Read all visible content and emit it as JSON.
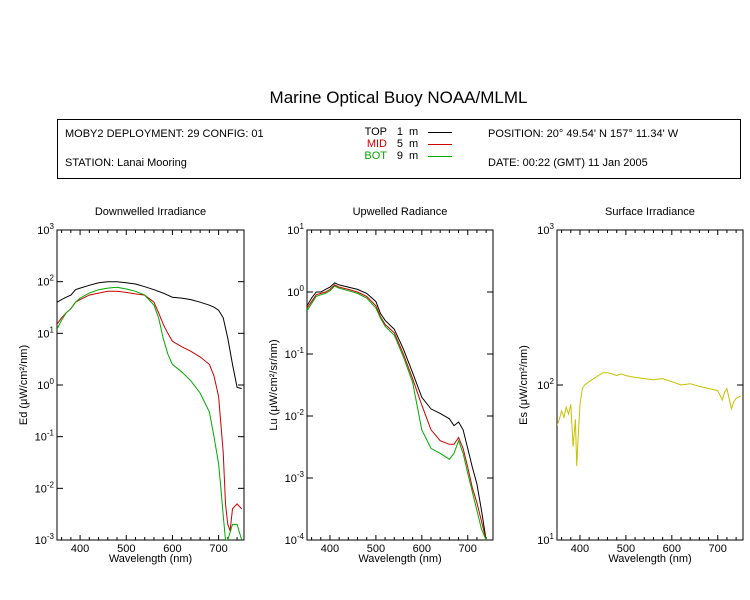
{
  "title": "Marine Optical Buoy NOAA/MLML",
  "header": {
    "deployment": "MOBY2 DEPLOYMENT: 29 CONFIG: 01",
    "station": "STATION: Lanai Mooring",
    "position": "POSITION: 20° 49.54' N   157° 11.34' W",
    "date": "DATE: 00:22 (GMT) 11 Jan 2005",
    "legend": [
      {
        "name": "TOP",
        "depth": "1",
        "unit": "m",
        "color": "#000000"
      },
      {
        "name": "MID",
        "depth": "5",
        "unit": "m",
        "color": "#cc0000"
      },
      {
        "name": "BOT",
        "depth": "9",
        "unit": "m",
        "color": "#00aa00"
      }
    ]
  },
  "chart_data": [
    {
      "type": "line",
      "title": "Downwelled Irradiance",
      "xlabel": "Wavelength (nm)",
      "ylabel": "Ed  (μW/cm²/nm)",
      "xlim": [
        350,
        755
      ],
      "ylim": [
        0.001,
        1000
      ],
      "yscale": "log",
      "xticks": [
        400,
        500,
        600,
        700
      ],
      "yticks": [
        {
          "v": 0.001,
          "base": "10",
          "exp": "-3"
        },
        {
          "v": 0.01,
          "base": "10",
          "exp": "-2"
        },
        {
          "v": 0.1,
          "base": "10",
          "exp": "-1"
        },
        {
          "v": 1,
          "base": "10",
          "exp": "0"
        },
        {
          "v": 10,
          "base": "10",
          "exp": "1"
        },
        {
          "v": 100,
          "base": "10",
          "exp": "2"
        },
        {
          "v": 1000,
          "base": "10",
          "exp": "3"
        }
      ],
      "series": [
        {
          "name": "TOP",
          "color": "#000000",
          "x": [
            350,
            360,
            370,
            380,
            390,
            400,
            420,
            440,
            460,
            480,
            500,
            520,
            540,
            560,
            580,
            600,
            620,
            640,
            660,
            680,
            690,
            700,
            710,
            720,
            730,
            735,
            740,
            750
          ],
          "y": [
            40,
            45,
            50,
            55,
            70,
            75,
            85,
            95,
            100,
            100,
            95,
            90,
            80,
            70,
            60,
            50,
            48,
            45,
            40,
            35,
            32,
            28,
            20,
            8,
            2.5,
            1.5,
            0.9,
            0.85
          ]
        },
        {
          "name": "MID",
          "color": "#cc0000",
          "x": [
            350,
            360,
            370,
            380,
            390,
            400,
            420,
            440,
            460,
            480,
            500,
            520,
            540,
            560,
            570,
            580,
            590,
            600,
            620,
            640,
            660,
            680,
            690,
            700,
            710,
            715,
            720,
            725,
            730,
            740,
            750
          ],
          "y": [
            15,
            20,
            25,
            30,
            40,
            45,
            55,
            60,
            65,
            65,
            62,
            58,
            55,
            40,
            25,
            15,
            10,
            7,
            5.5,
            4.5,
            3.5,
            2.5,
            1.5,
            0.6,
            0.05,
            0.005,
            0.002,
            0.0015,
            0.004,
            0.005,
            0.004
          ]
        },
        {
          "name": "BOT",
          "color": "#00aa00",
          "x": [
            350,
            360,
            370,
            380,
            390,
            400,
            420,
            440,
            460,
            480,
            500,
            520,
            540,
            560,
            570,
            580,
            590,
            600,
            620,
            640,
            660,
            680,
            690,
            700,
            705,
            710,
            715,
            720,
            730,
            740,
            750
          ],
          "y": [
            12,
            18,
            25,
            30,
            40,
            48,
            60,
            70,
            75,
            78,
            72,
            65,
            55,
            35,
            20,
            8,
            4,
            2.5,
            1.8,
            1.2,
            0.7,
            0.3,
            0.1,
            0.03,
            0.01,
            0.003,
            0.001,
            0.001,
            0.002,
            0.002,
            0.001
          ]
        }
      ]
    },
    {
      "type": "line",
      "title": "Upwelled Radiance",
      "xlabel": "Wavelength (nm)",
      "ylabel": "Lu  (μW/cm²/sr/nm)",
      "xlim": [
        350,
        755
      ],
      "ylim": [
        0.0001,
        10
      ],
      "yscale": "log",
      "xticks": [
        400,
        500,
        600,
        700
      ],
      "yticks": [
        {
          "v": 0.0001,
          "base": "10",
          "exp": "-4"
        },
        {
          "v": 0.001,
          "base": "10",
          "exp": "-3"
        },
        {
          "v": 0.01,
          "base": "10",
          "exp": "-2"
        },
        {
          "v": 0.1,
          "base": "10",
          "exp": "-1"
        },
        {
          "v": 1,
          "base": "10",
          "exp": "0"
        },
        {
          "v": 10,
          "base": "10",
          "exp": "1"
        }
      ],
      "series": [
        {
          "name": "TOP",
          "color": "#000000",
          "x": [
            350,
            360,
            370,
            380,
            390,
            400,
            410,
            420,
            440,
            460,
            480,
            500,
            510,
            520,
            540,
            560,
            580,
            600,
            620,
            640,
            660,
            670,
            680,
            690,
            700,
            710,
            720,
            730,
            740
          ],
          "y": [
            0.6,
            0.8,
            1.0,
            1.0,
            1.1,
            1.2,
            1.4,
            1.3,
            1.2,
            1.1,
            0.95,
            0.7,
            0.45,
            0.35,
            0.25,
            0.12,
            0.05,
            0.02,
            0.013,
            0.011,
            0.009,
            0.007,
            0.008,
            0.006,
            0.003,
            0.0015,
            0.0008,
            0.0003,
            0.0001
          ]
        },
        {
          "name": "MID",
          "color": "#cc0000",
          "x": [
            350,
            360,
            370,
            380,
            390,
            400,
            410,
            420,
            440,
            460,
            480,
            500,
            510,
            520,
            540,
            560,
            580,
            600,
            620,
            640,
            660,
            670,
            680,
            690,
            700,
            710,
            720,
            730,
            740
          ],
          "y": [
            0.55,
            0.7,
            0.9,
            0.95,
            1.0,
            1.1,
            1.3,
            1.2,
            1.1,
            1.0,
            0.85,
            0.6,
            0.4,
            0.3,
            0.22,
            0.1,
            0.04,
            0.015,
            0.006,
            0.004,
            0.0035,
            0.0035,
            0.0045,
            0.003,
            0.0015,
            0.0007,
            0.0004,
            0.0002,
            0.0001
          ]
        },
        {
          "name": "BOT",
          "color": "#00aa00",
          "x": [
            350,
            360,
            370,
            380,
            390,
            400,
            410,
            420,
            440,
            460,
            480,
            500,
            510,
            520,
            540,
            560,
            580,
            600,
            620,
            640,
            660,
            670,
            680,
            690,
            700,
            710,
            720,
            730,
            740
          ],
          "y": [
            0.5,
            0.65,
            0.85,
            0.9,
            0.95,
            1.05,
            1.25,
            1.15,
            1.05,
            0.95,
            0.8,
            0.55,
            0.38,
            0.28,
            0.2,
            0.09,
            0.035,
            0.006,
            0.003,
            0.0025,
            0.002,
            0.0025,
            0.004,
            0.0025,
            0.0012,
            0.0006,
            0.0003,
            0.00015,
            0.0001
          ]
        }
      ]
    },
    {
      "type": "line",
      "title": "Surface Irradiance",
      "xlabel": "Wavelength (nm)",
      "ylabel": "Es  (μW/cm²/nm)",
      "xlim": [
        350,
        755
      ],
      "ylim": [
        10,
        1000
      ],
      "yscale": "log",
      "xticks": [
        400,
        500,
        600,
        700
      ],
      "yticks": [
        {
          "v": 10,
          "base": "10",
          "exp": "1"
        },
        {
          "v": 100,
          "base": "10",
          "exp": "2"
        },
        {
          "v": 1000,
          "base": "10",
          "exp": "3"
        }
      ],
      "series": [
        {
          "name": "Es",
          "color": "#c8c000",
          "x": [
            350,
            355,
            360,
            365,
            370,
            375,
            380,
            385,
            390,
            393,
            396,
            400,
            405,
            410,
            420,
            430,
            440,
            450,
            460,
            470,
            480,
            490,
            500,
            520,
            540,
            560,
            580,
            600,
            620,
            640,
            660,
            680,
            700,
            710,
            715,
            720,
            730,
            735,
            740,
            750
          ],
          "y": [
            55,
            60,
            68,
            62,
            72,
            65,
            75,
            40,
            60,
            30,
            45,
            75,
            95,
            100,
            105,
            110,
            115,
            120,
            120,
            118,
            115,
            118,
            115,
            112,
            110,
            108,
            110,
            105,
            100,
            102,
            98,
            95,
            92,
            80,
            90,
            95,
            70,
            78,
            82,
            85
          ]
        }
      ]
    }
  ]
}
